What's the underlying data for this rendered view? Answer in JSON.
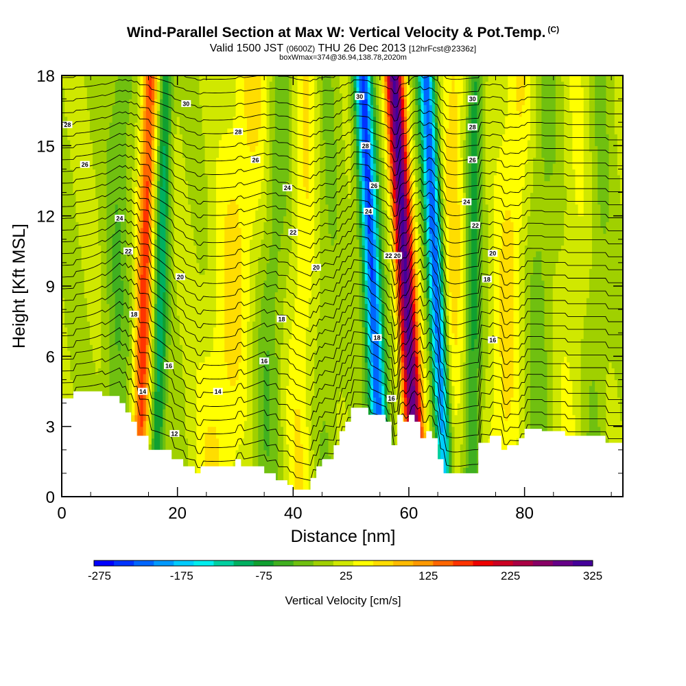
{
  "header": {
    "title": "Wind-Parallel Section at Max W: Vertical Velocity & Pot.Temp.",
    "copyright": "(C)",
    "valid_prefix": "Valid 1500 JST",
    "valid_utc": "(0600Z)",
    "valid_date": "THU 26 Dec 2013",
    "forecast": "[12hrFcst@2336z]",
    "box_info": "boxWmax=374@36.94,138.78,2020m"
  },
  "chart_data": {
    "type": "heatmap",
    "xlabel": "Distance [nm]",
    "ylabel": "Height [Kft MSL]",
    "xlim": [
      0,
      97
    ],
    "ylim": [
      0,
      18
    ],
    "xticks": [
      0,
      20,
      40,
      60,
      80
    ],
    "yticks": [
      0,
      3,
      6,
      9,
      12,
      15,
      18
    ],
    "colorbar": {
      "label": "Vertical Velocity [cm/s]",
      "ticks": [
        "-275",
        "-175",
        "-75",
        "25",
        "125",
        "225",
        "325"
      ],
      "min": -300,
      "step": 25,
      "colors": [
        "#0000ff",
        "#0033ff",
        "#0066ff",
        "#0099ff",
        "#00ccff",
        "#00eeee",
        "#00d0a0",
        "#00b060",
        "#10a030",
        "#40b020",
        "#70c010",
        "#a0d000",
        "#d0e800",
        "#ffff00",
        "#ffdd00",
        "#ffbb00",
        "#ff9900",
        "#ff6600",
        "#ff3300",
        "#ee0000",
        "#cc0022",
        "#aa0044",
        "#880066",
        "#660088",
        "#440099"
      ]
    },
    "terrain_kft": [
      [
        0,
        4.2
      ],
      [
        2,
        4.2
      ],
      [
        2,
        4.5
      ],
      [
        7,
        4.5
      ],
      [
        7,
        4.3
      ],
      [
        10,
        4.3
      ],
      [
        10,
        4.0
      ],
      [
        11,
        4.0
      ],
      [
        11,
        3.6
      ],
      [
        12,
        3.6
      ],
      [
        12,
        3.2
      ],
      [
        13,
        3.2
      ],
      [
        13,
        2.6
      ],
      [
        15,
        2.6
      ],
      [
        15,
        2.0
      ],
      [
        19,
        2.0
      ],
      [
        19,
        1.6
      ],
      [
        21,
        1.6
      ],
      [
        21,
        1.3
      ],
      [
        23,
        1.3
      ],
      [
        23,
        1.0
      ],
      [
        24,
        1.0
      ],
      [
        24,
        1.3
      ],
      [
        30,
        1.3
      ],
      [
        30,
        1.6
      ],
      [
        31,
        1.6
      ],
      [
        31,
        1.3
      ],
      [
        35,
        1.3
      ],
      [
        35,
        1.0
      ],
      [
        37,
        1.0
      ],
      [
        37,
        0.7
      ],
      [
        39,
        0.7
      ],
      [
        39,
        0.5
      ],
      [
        40,
        0.5
      ],
      [
        40,
        0.3
      ],
      [
        43,
        0.3
      ],
      [
        43,
        0.8
      ],
      [
        44,
        0.8
      ],
      [
        44,
        1.3
      ],
      [
        45,
        1.3
      ],
      [
        45,
        1.6
      ],
      [
        47,
        1.6
      ],
      [
        47,
        2.2
      ],
      [
        48,
        2.2
      ],
      [
        48,
        2.8
      ],
      [
        49,
        2.8
      ],
      [
        49,
        3.2
      ],
      [
        50,
        3.2
      ],
      [
        50,
        3.8
      ],
      [
        53,
        3.8
      ],
      [
        53,
        3.5
      ],
      [
        56,
        3.5
      ],
      [
        56,
        3.2
      ],
      [
        57,
        3.2
      ],
      [
        57,
        2.2
      ],
      [
        58,
        2.2
      ],
      [
        58,
        3.5
      ],
      [
        59,
        3.5
      ],
      [
        59,
        3.2
      ],
      [
        60,
        3.2
      ],
      [
        60,
        3.5
      ],
      [
        61,
        3.5
      ],
      [
        61,
        3.2
      ],
      [
        62,
        3.2
      ],
      [
        62,
        2.5
      ],
      [
        63,
        2.5
      ],
      [
        63,
        2.8
      ],
      [
        64,
        2.8
      ],
      [
        64,
        2.5
      ],
      [
        65,
        2.5
      ],
      [
        65,
        1.6
      ],
      [
        66,
        1.6
      ],
      [
        66,
        1.0
      ],
      [
        72,
        1.0
      ],
      [
        72,
        2.3
      ],
      [
        74,
        2.3
      ],
      [
        74,
        2.6
      ],
      [
        76,
        2.6
      ],
      [
        76,
        2.0
      ],
      [
        77,
        2.0
      ],
      [
        77,
        2.2
      ],
      [
        79,
        2.2
      ],
      [
        79,
        2.5
      ],
      [
        80,
        2.5
      ],
      [
        80,
        2.9
      ],
      [
        83,
        2.9
      ],
      [
        83,
        2.8
      ],
      [
        87,
        2.8
      ],
      [
        87,
        2.6
      ],
      [
        94,
        2.6
      ],
      [
        94,
        2.3
      ],
      [
        97,
        2.3
      ]
    ],
    "w_features": [
      {
        "x0": 13.5,
        "dx": 1.8,
        "amp": 160,
        "sx": 1.4
      },
      {
        "x0": 16.5,
        "dx": 1.5,
        "amp": -110,
        "sx": 1.2
      },
      {
        "x0": 9.0,
        "dx": 1.5,
        "amp": -45,
        "sx": 2.2
      },
      {
        "x0": 27.0,
        "dx": 6.0,
        "amp": 55,
        "sx": 4.0
      },
      {
        "x0": 35.0,
        "dx": 3.0,
        "amp": -45,
        "sx": 2.2
      },
      {
        "x0": 41.0,
        "dx": 1.5,
        "amp": 45,
        "sx": 2.2
      },
      {
        "x0": 46.0,
        "dx": 0.0,
        "amp": -25,
        "sx": 2.0
      },
      {
        "x0": 55.0,
        "dx": -3.0,
        "amp": -260,
        "sx": 1.5
      },
      {
        "x0": 61.0,
        "dx": -3.5,
        "amp": 300,
        "sx": 1.6
      },
      {
        "x0": 66.0,
        "dx": -3.0,
        "amp": -240,
        "sx": 1.4
      },
      {
        "x0": 67.0,
        "dx": 1.0,
        "amp": 60,
        "sx": 2.0
      },
      {
        "x0": 71.0,
        "dx": 0.5,
        "amp": -85,
        "sx": 1.4
      },
      {
        "x0": 76.0,
        "dx": 3.0,
        "amp": 55,
        "sx": 2.8
      },
      {
        "x0": 82.0,
        "dx": 1.5,
        "amp": -35,
        "sx": 2.5
      },
      {
        "x0": 88.0,
        "dx": 2.0,
        "amp": 25,
        "sx": 3.0
      },
      {
        "x0": 92.0,
        "dx": 1.0,
        "amp": -30,
        "sx": 2.2
      }
    ],
    "theta_levels": [
      10,
      18
    ],
    "theta_contours": [
      {
        "label": "14",
        "x": 14.0,
        "y": 4.5
      },
      {
        "label": "12",
        "x": 19.5,
        "y": 2.7
      },
      {
        "label": "16",
        "x": 18.5,
        "y": 5.6
      },
      {
        "label": "14",
        "x": 27.0,
        "y": 4.5
      },
      {
        "label": "16",
        "x": 35.0,
        "y": 5.8
      },
      {
        "label": "18",
        "x": 38.0,
        "y": 7.6
      },
      {
        "label": "18",
        "x": 12.5,
        "y": 7.8
      },
      {
        "label": "20",
        "x": 20.5,
        "y": 9.4
      },
      {
        "label": "20",
        "x": 44.0,
        "y": 9.8
      },
      {
        "label": "22",
        "x": 11.5,
        "y": 10.5
      },
      {
        "label": "22",
        "x": 40.0,
        "y": 11.3
      },
      {
        "label": "24",
        "x": 10.0,
        "y": 11.9
      },
      {
        "label": "24",
        "x": 39.0,
        "y": 13.2
      },
      {
        "label": "26",
        "x": 33.5,
        "y": 14.4
      },
      {
        "label": "26",
        "x": 4.0,
        "y": 14.2
      },
      {
        "label": "28",
        "x": 30.5,
        "y": 15.6
      },
      {
        "label": "28",
        "x": 1.0,
        "y": 15.9
      },
      {
        "label": "30",
        "x": 21.5,
        "y": 16.8
      },
      {
        "label": "30",
        "x": 51.5,
        "y": 17.1
      },
      {
        "label": "28",
        "x": 52.5,
        "y": 15.0
      },
      {
        "label": "26",
        "x": 54.0,
        "y": 13.3
      },
      {
        "label": "24",
        "x": 53.0,
        "y": 12.2
      },
      {
        "label": "22",
        "x": 56.5,
        "y": 10.3
      },
      {
        "label": "20",
        "x": 58.0,
        "y": 10.3
      },
      {
        "label": "18",
        "x": 54.5,
        "y": 6.8
      },
      {
        "label": "16",
        "x": 57.0,
        "y": 4.2
      },
      {
        "label": "30",
        "x": 71.0,
        "y": 17.0
      },
      {
        "label": "28",
        "x": 71.0,
        "y": 15.8
      },
      {
        "label": "26",
        "x": 71.0,
        "y": 14.4
      },
      {
        "label": "24",
        "x": 70.0,
        "y": 12.6
      },
      {
        "label": "22",
        "x": 71.5,
        "y": 11.6
      },
      {
        "label": "20",
        "x": 74.5,
        "y": 10.4
      },
      {
        "label": "18",
        "x": 73.5,
        "y": 9.3
      },
      {
        "label": "16",
        "x": 74.5,
        "y": 6.7
      }
    ]
  }
}
